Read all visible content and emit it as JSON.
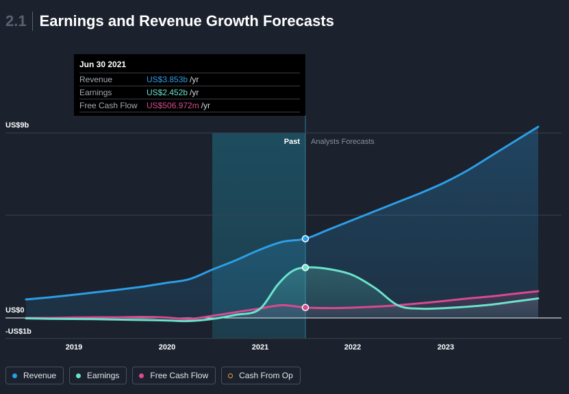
{
  "header": {
    "section_number": "2.1",
    "title": "Earnings and Revenue Growth Forecasts"
  },
  "tooltip": {
    "date": "Jun 30 2021",
    "rows": [
      {
        "label": "Revenue",
        "value": "US$3.853b",
        "unit": "/yr",
        "color": "#2d9ee6"
      },
      {
        "label": "Earnings",
        "value": "US$2.452b",
        "unit": "/yr",
        "color": "#6be3cc"
      },
      {
        "label": "Free Cash Flow",
        "value": "US$506.972m",
        "unit": "/yr",
        "color": "#d94a8f"
      }
    ]
  },
  "legend": [
    {
      "label": "Revenue",
      "color": "#2d9ee6",
      "style": "filled"
    },
    {
      "label": "Earnings",
      "color": "#6be3cc",
      "style": "filled"
    },
    {
      "label": "Free Cash Flow",
      "color": "#d94a8f",
      "style": "filled"
    },
    {
      "label": "Cash From Op",
      "color": "#e1a73a",
      "style": "hollow"
    }
  ],
  "chart_data": {
    "type": "line",
    "title": "",
    "y_tick_labels": [
      {
        "label": "US$9b",
        "value": 9
      },
      {
        "label": "US$0",
        "value": 0
      },
      {
        "label": "-US$1b",
        "value": -1
      }
    ],
    "x_tick_labels": [
      "2019",
      "2020",
      "2021",
      "2022",
      "2023"
    ],
    "x_range": [
      2018.5,
      2024.0
    ],
    "ylim": [
      -1,
      9
    ],
    "grid": true,
    "past_label": "Past",
    "forecast_label": "Analysts Forecasts",
    "past_window": [
      2020.5,
      2021.5
    ],
    "marker_x": 2021.5,
    "series": [
      {
        "name": "Revenue",
        "color": "#2d9ee6",
        "x": [
          2018.5,
          2018.75,
          2019.0,
          2019.25,
          2019.5,
          2019.75,
          2020.0,
          2020.25,
          2020.5,
          2020.75,
          2021.0,
          2021.25,
          2021.5,
          2021.75,
          2022.0,
          2022.25,
          2022.5,
          2022.75,
          2023.0,
          2023.25,
          2023.5,
          2023.75,
          2024.0
        ],
        "values": [
          0.9,
          1.0,
          1.12,
          1.25,
          1.38,
          1.52,
          1.7,
          1.88,
          2.35,
          2.8,
          3.3,
          3.7,
          3.853,
          4.3,
          4.75,
          5.2,
          5.65,
          6.1,
          6.6,
          7.2,
          7.9,
          8.6,
          9.3
        ]
      },
      {
        "name": "Earnings",
        "color": "#6be3cc",
        "x": [
          2018.5,
          2018.75,
          2019.0,
          2019.25,
          2019.5,
          2019.75,
          2020.0,
          2020.25,
          2020.5,
          2020.75,
          2021.0,
          2021.2,
          2021.35,
          2021.5,
          2021.75,
          2022.0,
          2022.25,
          2022.5,
          2022.75,
          2023.0,
          2023.25,
          2023.5,
          2023.75,
          2024.0
        ],
        "values": [
          -0.02,
          -0.04,
          -0.05,
          -0.06,
          -0.08,
          -0.1,
          -0.12,
          -0.15,
          -0.05,
          0.15,
          0.4,
          1.6,
          2.25,
          2.452,
          2.38,
          2.1,
          1.45,
          0.6,
          0.45,
          0.48,
          0.55,
          0.65,
          0.8,
          0.95
        ]
      },
      {
        "name": "Free Cash Flow",
        "color": "#d94a8f",
        "x": [
          2018.5,
          2018.75,
          2019.0,
          2019.25,
          2019.5,
          2019.75,
          2020.0,
          2020.25,
          2020.5,
          2020.75,
          2021.0,
          2021.25,
          2021.5,
          2021.75,
          2022.0,
          2022.25,
          2022.5,
          2022.75,
          2023.0,
          2023.25,
          2023.5,
          2023.75,
          2024.0
        ],
        "values": [
          0.0,
          0.0,
          0.02,
          0.03,
          0.03,
          0.05,
          0.02,
          -0.05,
          0.1,
          0.28,
          0.45,
          0.62,
          0.507,
          0.48,
          0.5,
          0.55,
          0.62,
          0.72,
          0.83,
          0.95,
          1.05,
          1.18,
          1.3
        ]
      }
    ]
  }
}
